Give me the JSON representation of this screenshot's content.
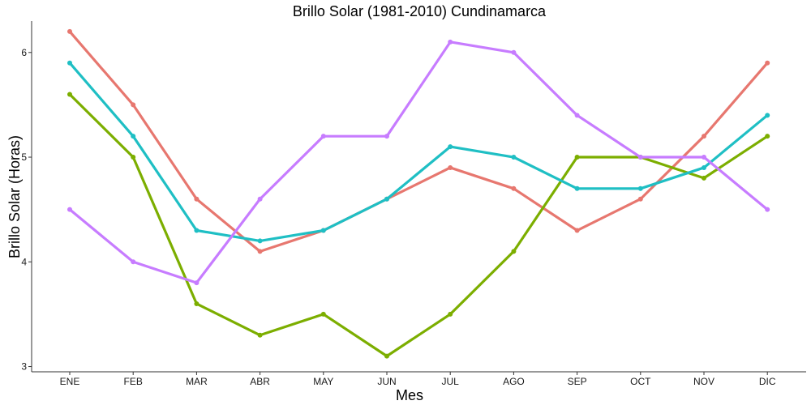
{
  "chart_data": {
    "type": "line",
    "title": "Brillo Solar (1981-2010)  Cundinamarca",
    "xlabel": "Mes",
    "ylabel": "Brillo Solar (Horas)",
    "categories": [
      "ENE",
      "FEB",
      "MAR",
      "ABR",
      "MAY",
      "JUN",
      "JUL",
      "AGO",
      "SEP",
      "OCT",
      "NOV",
      "DIC"
    ],
    "ylim": [
      2.95,
      6.3
    ],
    "yticks": [
      3,
      4,
      5,
      6
    ],
    "grid": false,
    "legend": "none",
    "series": [
      {
        "color": "#E7776F",
        "values": [
          6.2,
          5.5,
          4.6,
          4.1,
          4.3,
          4.6,
          4.9,
          4.7,
          4.3,
          4.6,
          5.2,
          5.9
        ]
      },
      {
        "color": "#7CAE00",
        "values": [
          5.6,
          5.0,
          3.6,
          3.3,
          3.5,
          3.1,
          3.5,
          4.1,
          5.0,
          5.0,
          4.8,
          5.2
        ]
      },
      {
        "color": "#1FBFC4",
        "values": [
          5.9,
          5.2,
          4.3,
          4.2,
          4.3,
          4.6,
          5.1,
          5.0,
          4.7,
          4.7,
          4.9,
          5.4
        ]
      },
      {
        "color": "#C77CFF",
        "values": [
          4.5,
          4.0,
          3.8,
          4.6,
          5.2,
          5.2,
          6.1,
          6.0,
          5.4,
          5.0,
          5.0,
          4.5
        ]
      }
    ]
  }
}
